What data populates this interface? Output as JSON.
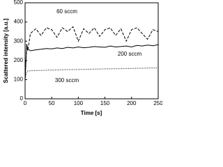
{
  "chart_data": {
    "type": "line",
    "x_label": "Time [s]",
    "y_label": "Scattered intensity [a.u.]",
    "x": [
      0,
      3,
      5,
      10,
      20,
      30,
      40,
      50,
      60,
      70,
      80,
      90,
      100,
      110,
      120,
      130,
      140,
      150,
      160,
      170,
      180,
      190,
      200,
      210,
      220,
      230,
      240,
      250
    ],
    "series": [
      {
        "name": "60 sccm",
        "color": "#000000",
        "dash": "dashed",
        "values": [
          100,
          280,
          250,
          340,
          365,
          330,
          370,
          360,
          320,
          370,
          350,
          375,
          300,
          365,
          340,
          370,
          325,
          360,
          370,
          330,
          365,
          300,
          360,
          370,
          340,
          310,
          360,
          350
        ]
      },
      {
        "name": "200 sccm",
        "color": "#000000",
        "dash": "solid",
        "values": [
          100,
          285,
          260,
          250,
          255,
          258,
          262,
          260,
          265,
          262,
          268,
          265,
          270,
          266,
          268,
          272,
          270,
          268,
          275,
          270,
          272,
          275,
          270,
          278,
          275,
          280,
          276,
          282
        ]
      },
      {
        "name": "300 sccm",
        "color": "#000000",
        "dash": "dotted",
        "values": [
          100,
          140,
          145,
          146,
          147,
          148,
          149,
          150,
          150,
          151,
          152,
          152,
          153,
          153,
          154,
          155,
          155,
          156,
          156,
          157,
          157,
          158,
          158,
          159,
          159,
          160,
          160,
          161
        ]
      }
    ],
    "xlim": [
      0,
      250
    ],
    "xticks": [
      0,
      50,
      100,
      150,
      200,
      250
    ],
    "ylim": [
      0,
      500
    ],
    "yticks": [
      0,
      100,
      200,
      300,
      400,
      500
    ]
  }
}
